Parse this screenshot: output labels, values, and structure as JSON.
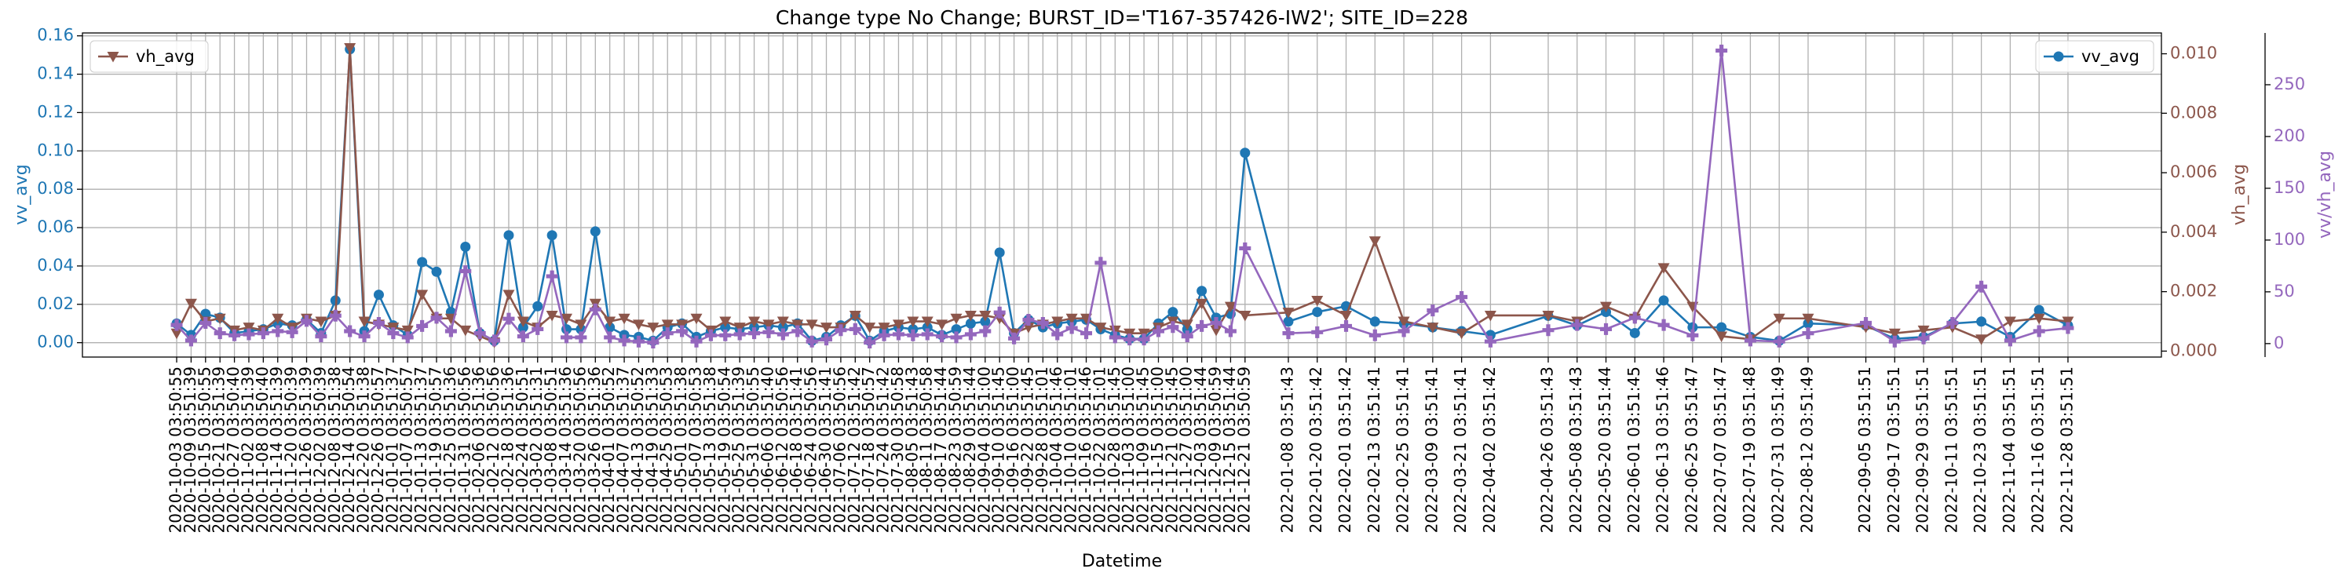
{
  "chart_data": {
    "type": "line",
    "title": "Change type No Change; BURST_ID='T167-357426-IW2'; SITE_ID=228",
    "xlabel": "Datetime",
    "ylabel": "vv_avg",
    "y2label": "vh_avg",
    "x": [
      "2020-10-03 03:50:55",
      "2020-10-09 03:51:39",
      "2020-10-15 03:50:55",
      "2020-10-21 03:51:39",
      "2020-10-27 03:50:40",
      "2020-11-02 03:51:39",
      "2020-11-08 03:50:40",
      "2020-11-14 03:51:39",
      "2020-11-20 03:50:39",
      "2020-11-26 03:51:39",
      "2020-12-02 03:50:39",
      "2020-12-08 03:51:38",
      "2020-12-14 03:50:54",
      "2020-12-20 03:51:38",
      "2020-12-26 03:50:57",
      "2021-01-01 03:51:37",
      "2021-01-07 03:50:57",
      "2021-01-13 03:51:37",
      "2021-01-19 03:50:57",
      "2021-01-25 03:51:36",
      "2021-01-31 03:50:56",
      "2021-02-06 03:51:36",
      "2021-02-12 03:50:56",
      "2021-02-18 03:51:36",
      "2021-02-24 03:50:51",
      "2021-03-02 03:51:31",
      "2021-03-08 03:50:51",
      "2021-03-14 03:51:36",
      "2021-03-20 03:50:56",
      "2021-03-26 03:51:36",
      "2021-04-01 03:50:52",
      "2021-04-07 03:51:37",
      "2021-04-13 03:50:52",
      "2021-04-19 03:51:33",
      "2021-04-25 03:50:53",
      "2021-05-01 03:51:38",
      "2021-05-07 03:50:53",
      "2021-05-13 03:51:38",
      "2021-05-19 03:50:54",
      "2021-05-25 03:51:39",
      "2021-05-31 03:50:55",
      "2021-06-06 03:51:40",
      "2021-06-12 03:50:56",
      "2021-06-18 03:51:41",
      "2021-06-24 03:50:56",
      "2021-06-30 03:51:41",
      "2021-07-06 03:50:56",
      "2021-07-12 03:51:42",
      "2021-07-18 03:50:57",
      "2021-07-24 03:51:42",
      "2021-07-30 03:50:58",
      "2021-08-05 03:51:43",
      "2021-08-11 03:50:58",
      "2021-08-17 03:51:44",
      "2021-08-23 03:50:59",
      "2021-08-29 03:51:44",
      "2021-09-04 03:51:00",
      "2021-09-10 03:51:45",
      "2021-09-16 03:51:00",
      "2021-09-22 03:51:45",
      "2021-09-28 03:51:01",
      "2021-10-04 03:51:46",
      "2021-10-10 03:51:01",
      "2021-10-16 03:51:46",
      "2021-10-22 03:51:01",
      "2021-10-28 03:51:45",
      "2021-11-03 03:51:00",
      "2021-11-09 03:51:45",
      "2021-11-15 03:51:00",
      "2021-11-21 03:51:45",
      "2021-11-27 03:51:00",
      "2021-12-03 03:51:44",
      "2021-12-09 03:50:59",
      "2021-12-15 03:51:44",
      "2021-12-21 03:50:59",
      "2022-01-08 03:51:43",
      "2022-01-20 03:51:42",
      "2022-02-01 03:51:42",
      "2022-02-13 03:51:41",
      "2022-02-25 03:51:41",
      "2022-03-09 03:51:41",
      "2022-03-21 03:51:41",
      "2022-04-02 03:51:42",
      "2022-04-26 03:51:43",
      "2022-05-08 03:51:43",
      "2022-05-20 03:51:44",
      "2022-06-01 03:51:45",
      "2022-06-13 03:51:46",
      "2022-06-25 03:51:47",
      "2022-07-07 03:51:47",
      "2022-07-19 03:51:48",
      "2022-07-31 03:51:49",
      "2022-08-12 03:51:49",
      "2022-09-05 03:51:51",
      "2022-09-17 03:51:51",
      "2022-09-29 03:51:51",
      "2022-10-11 03:51:51",
      "2022-10-23 03:51:51",
      "2022-11-04 03:51:51",
      "2022-11-16 03:51:51",
      "2022-11-28 03:51:51"
    ],
    "xlim": [
      "2020-08-25",
      "2023-01-06"
    ],
    "ylim": [
      -0.0075,
      0.1615
    ],
    "yticks": [
      {
        "value": 0,
        "label": "0.00"
      },
      {
        "value": 0.02,
        "label": "0.02"
      },
      {
        "value": 0.04,
        "label": "0.04"
      },
      {
        "value": 0.06,
        "label": "0.06"
      },
      {
        "value": 0.08,
        "label": "0.08"
      },
      {
        "value": 0.1,
        "label": "0.10"
      },
      {
        "value": 0.12,
        "label": "0.12"
      },
      {
        "value": 0.14,
        "label": "0.14"
      },
      {
        "value": 0.16,
        "label": "0.16"
      }
    ],
    "y2lim": [
      -0.0002,
      0.0107
    ],
    "y2ticks": [
      {
        "value": 0,
        "label": "0.000"
      },
      {
        "value": 0.002,
        "label": "0.002"
      },
      {
        "value": 0.004,
        "label": "0.004"
      },
      {
        "value": 0.006,
        "label": "0.006"
      },
      {
        "value": 0.008,
        "label": "0.008"
      },
      {
        "value": 0.01,
        "label": "0.010"
      }
    ],
    "y3lim": [
      -13,
      300
    ],
    "y3ticks": [
      0,
      50,
      100,
      150,
      200,
      250
    ],
    "grid": true,
    "series": [
      {
        "name": "vv_avg",
        "color": "#1f77b4",
        "axis": "y",
        "marker": "o",
        "legend_loc": "upper right",
        "values": [
          0.01,
          0.004,
          0.015,
          0.013,
          0.005,
          0.006,
          0.007,
          0.01,
          0.009,
          0.012,
          0.005,
          0.022,
          0.153,
          0.006,
          0.025,
          0.009,
          0.004,
          0.042,
          0.037,
          0.016,
          0.05,
          0.005,
          0.001,
          0.056,
          0.008,
          0.019,
          0.056,
          0.007,
          0.007,
          0.058,
          0.008,
          0.004,
          0.003,
          0.001,
          0.008,
          0.01,
          0.003,
          0.006,
          0.008,
          0.007,
          0.008,
          0.009,
          0.008,
          0.01,
          0.001,
          0.003,
          0.009,
          0.014,
          0.001,
          0.006,
          0.008,
          0.007,
          0.008,
          0.004,
          0.007,
          0.01,
          0.011,
          0.047,
          0.005,
          0.012,
          0.008,
          0.01,
          0.011,
          0.012,
          0.007,
          0.004,
          0.002,
          0.002,
          0.01,
          0.016,
          0.007,
          0.027,
          0.013,
          0.015,
          0.099,
          0.011,
          0.016,
          0.019,
          0.011,
          0.01,
          0.008,
          0.006,
          0.004,
          0.014,
          0.009,
          0.016,
          0.005,
          0.022,
          0.008,
          0.008,
          0.003,
          0.001,
          0.01,
          0.009,
          0.002,
          0.003,
          0.01,
          0.011,
          0.003,
          0.017,
          0.009
        ]
      },
      {
        "name": "vh_avg",
        "color": "#8c564b",
        "axis": "y2",
        "marker": "v",
        "legend_loc": "upper left",
        "values": [
          0.0006,
          0.0016,
          0.001,
          0.0011,
          0.0007,
          0.0008,
          0.0007,
          0.0011,
          0.0008,
          0.0011,
          0.001,
          0.0012,
          0.0102,
          0.001,
          0.0009,
          0.0008,
          0.0007,
          0.0019,
          0.0011,
          0.0011,
          0.0007,
          0.0005,
          0.0003,
          0.0019,
          0.001,
          0.0008,
          0.0012,
          0.0011,
          0.0009,
          0.0016,
          0.001,
          0.0011,
          0.0009,
          0.0008,
          0.0009,
          0.0009,
          0.0011,
          0.0007,
          0.001,
          0.0008,
          0.001,
          0.0009,
          0.001,
          0.0009,
          0.0009,
          0.0008,
          0.0008,
          0.0012,
          0.0008,
          0.0008,
          0.0009,
          0.001,
          0.001,
          0.0009,
          0.0011,
          0.0012,
          0.0012,
          0.0011,
          0.0006,
          0.0008,
          0.0009,
          0.001,
          0.0011,
          0.0011,
          0.0008,
          0.0007,
          0.0006,
          0.0006,
          0.0008,
          0.001,
          0.0009,
          0.0016,
          0.0007,
          0.0015,
          0.0012,
          0.0013,
          0.0017,
          0.0012,
          0.0037,
          0.001,
          0.0008,
          0.0006,
          0.0012,
          0.0012,
          0.001,
          0.0015,
          0.0011,
          0.0028,
          0.0015,
          0.0005,
          0.0004,
          0.0011,
          0.0011,
          0.0008,
          0.0006,
          0.0007,
          0.0008,
          0.0004,
          0.001,
          0.0011,
          0.001
        ]
      },
      {
        "name": "vv/vh_avg",
        "color": "#9467bd",
        "axis": "y3",
        "marker": "P",
        "values": [
          18,
          3,
          20,
          10,
          8,
          9,
          10,
          12,
          11,
          22,
          7,
          27,
          12,
          7,
          20,
          10,
          6,
          17,
          25,
          12,
          70,
          10,
          3,
          24,
          7,
          14,
          65,
          6,
          6,
          33,
          6,
          3,
          2,
          1,
          10,
          12,
          2,
          8,
          8,
          9,
          10,
          11,
          9,
          12,
          2,
          4,
          13,
          14,
          1,
          8,
          9,
          8,
          9,
          7,
          6,
          9,
          12,
          30,
          5,
          23,
          20,
          9,
          15,
          10,
          78,
          6,
          4,
          4,
          12,
          16,
          7,
          17,
          20,
          12,
          92,
          10,
          11,
          17,
          8,
          12,
          32,
          45,
          2,
          13,
          18,
          14,
          25,
          18,
          8,
          283,
          3,
          2,
          10,
          20,
          2,
          5,
          20,
          55,
          3,
          12,
          15
        ]
      }
    ]
  }
}
